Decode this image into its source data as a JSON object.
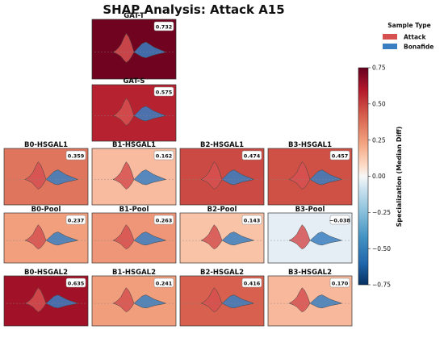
{
  "title": "SHAP Analysis: Attack A15",
  "legend": {
    "title": "Sample Type",
    "items": [
      {
        "label": "Attack",
        "color": "#d65050"
      },
      {
        "label": "Bonafide",
        "color": "#3a7fc2"
      }
    ]
  },
  "colorbar": {
    "label": "Specialization (Median Diff)",
    "ticks": [
      "0.75",
      "0.50",
      "0.25",
      "0.00",
      "−0.25",
      "−0.50",
      "−0.75"
    ],
    "tick_values": [
      0.75,
      0.5,
      0.25,
      0.0,
      -0.25,
      -0.5,
      -0.75
    ],
    "range": [
      -0.75,
      0.75
    ],
    "colormap": "RdBu_r"
  },
  "chart_data": {
    "type": "heatmap",
    "value_kind": "specialization (median diff)",
    "panels": [
      {
        "name": "GAT-T",
        "label": "0.732",
        "value": 0.732
      },
      {
        "name": "GAT-S",
        "label": "0.575",
        "value": 0.575
      },
      {
        "name": "B0-HSGAL1",
        "label": "0.359",
        "value": 0.359
      },
      {
        "name": "B1-HSGAL1",
        "label": "0.162",
        "value": 0.162
      },
      {
        "name": "B2-HSGAL1",
        "label": "0.474",
        "value": 0.474
      },
      {
        "name": "B3-HSGAL1",
        "label": "0.457",
        "value": 0.457
      },
      {
        "name": "B0-Pool",
        "label": "0.237",
        "value": 0.237
      },
      {
        "name": "B1-Pool",
        "label": "0.263",
        "value": 0.263
      },
      {
        "name": "B2-Pool",
        "label": "0.143",
        "value": 0.143
      },
      {
        "name": "B3-Pool",
        "label": "−0.038",
        "value": -0.038
      },
      {
        "name": "B0-HSGAL2",
        "label": "0.635",
        "value": 0.635
      },
      {
        "name": "B1-HSGAL2",
        "label": "0.241",
        "value": 0.241
      },
      {
        "name": "B2-HSGAL2",
        "label": "0.416",
        "value": 0.416
      },
      {
        "name": "B3-HSGAL2",
        "label": "0.170",
        "value": 0.17
      }
    ]
  }
}
